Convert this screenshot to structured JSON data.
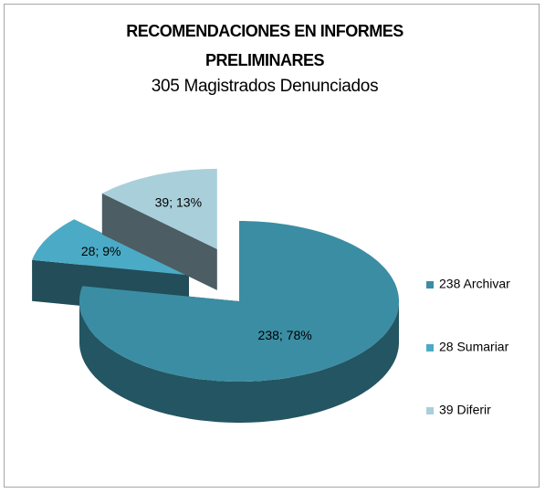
{
  "chart_data": {
    "type": "pie3d",
    "title": "RECOMENDACIONES EN INFORMES PRELIMINARES",
    "subtitle": "305 Magistrados Denunciados",
    "categories": [
      "238 Archivar",
      "28 Sumariar",
      "39 Diferir"
    ],
    "values": [
      238,
      28,
      39
    ],
    "value_labels": [
      "238; 78%",
      "28; 9%",
      "39; 13%"
    ],
    "colors": [
      "#3b8da3",
      "#4babc6",
      "#a9cfdb"
    ],
    "legend": "right"
  }
}
